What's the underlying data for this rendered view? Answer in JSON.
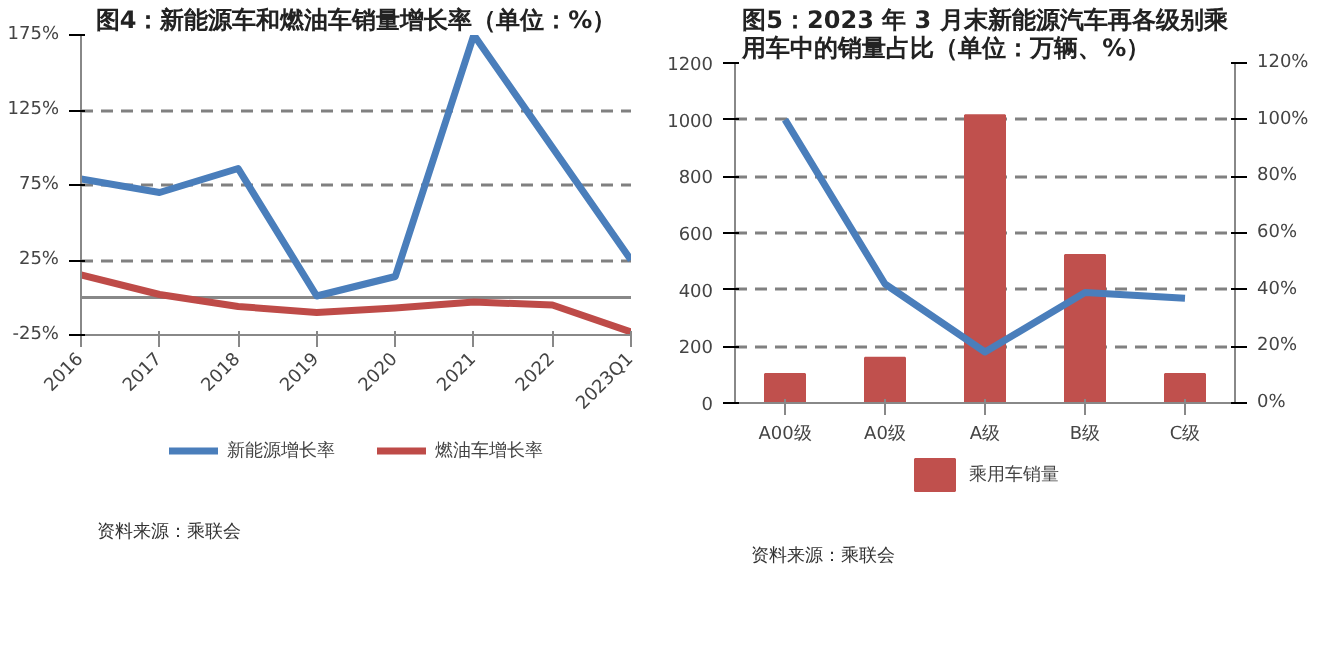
{
  "chart_data": [
    {
      "type": "line",
      "title": "图4：新能源车和燃油车销量增长率（单位：%）",
      "categories": [
        "2016",
        "2017",
        "2018",
        "2019",
        "2020",
        "2021",
        "2022",
        "2023Q1"
      ],
      "series": [
        {
          "name": "新能源增长率",
          "color": "#4a7ebb",
          "values": [
            79,
            70,
            86,
            1,
            14,
            175,
            100,
            25
          ]
        },
        {
          "name": "燃油车增长率",
          "color": "#be4b48",
          "values": [
            15,
            2,
            -6,
            -10,
            -7,
            -3,
            -5,
            -23
          ]
        }
      ],
      "ylim": [
        -25,
        175
      ],
      "yticks": [
        {
          "value": -25,
          "label": "-25%"
        },
        {
          "value": 25,
          "label": "25%"
        },
        {
          "value": 75,
          "label": "75%"
        },
        {
          "value": 125,
          "label": "125%"
        },
        {
          "value": 175,
          "label": "175%"
        }
      ],
      "grid": "y",
      "legend": "bottom",
      "marker": "none",
      "line_style": "solid",
      "annotations": [
        "资料来源：乘联会"
      ]
    },
    {
      "type": "bar",
      "title": "图5：2023 年 3 月末新能源汽车再各级别乘用车中的销量占比（单位：万辆、%）",
      "categories": [
        "A00级",
        "A0级",
        "A级",
        "B级",
        "C级"
      ],
      "series": [
        {
          "name": "乘用车销量",
          "color": "#c0504d",
          "values": [
            102,
            160,
            1016,
            522,
            102
          ]
        },
        {
          "type": "line",
          "axis": "y2",
          "color": "#4a7ebb",
          "values": [
            100,
            42,
            18,
            39,
            37
          ]
        }
      ],
      "ylim": [
        0,
        1200
      ],
      "yticks": [
        0,
        200,
        400,
        600,
        800,
        1000,
        1200
      ],
      "y2lim": [
        0,
        120
      ],
      "y2ticks": [
        {
          "value": 0,
          "label": "0%"
        },
        {
          "value": 20,
          "label": "20%"
        },
        {
          "value": 40,
          "label": "40%"
        },
        {
          "value": 60,
          "label": "60%"
        },
        {
          "value": 80,
          "label": "80%"
        },
        {
          "value": 100,
          "label": "100%"
        },
        {
          "value": 120,
          "label": "120%"
        }
      ],
      "grid": "y",
      "legend": "bottom",
      "annotations": [
        "资料来源：乘联会"
      ]
    }
  ]
}
